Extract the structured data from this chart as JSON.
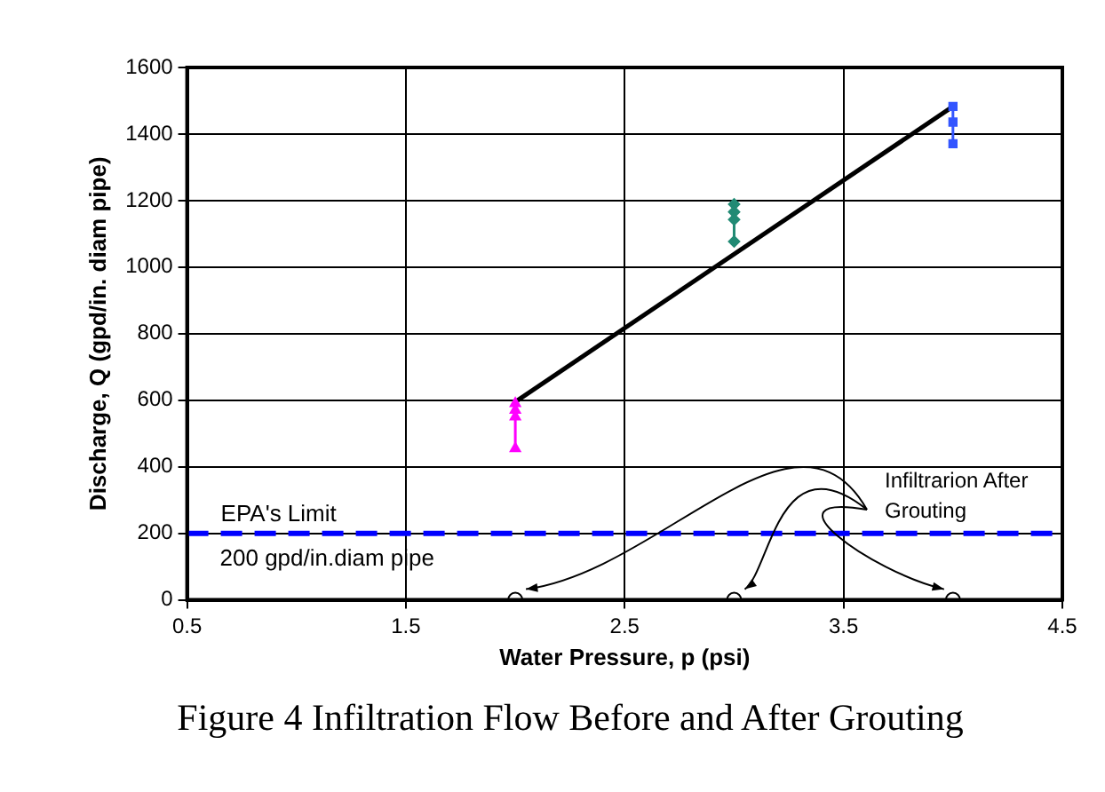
{
  "chart_data": {
    "type": "scatter",
    "title": "Figure 4 Infiltration Flow Before and After Grouting",
    "xlabel": "Water Pressure, p (psi)",
    "ylabel": "Discharge, Q (gpd/in. diam pipe)",
    "xlim": [
      0.5,
      4.5
    ],
    "xticks": [
      0.5,
      1.5,
      2.5,
      3.5,
      4.5
    ],
    "ylim": [
      0,
      1600
    ],
    "yticks": [
      0,
      200,
      400,
      600,
      800,
      1000,
      1200,
      1400,
      1600
    ],
    "grid": true,
    "legend": false,
    "series": [
      {
        "type": "line",
        "color": "#ff00ff",
        "marker": "triangle",
        "x": [
          2,
          2,
          2,
          2
        ],
        "values": [
          590,
          570,
          550,
          455
        ]
      },
      {
        "type": "line",
        "color": "#218a74",
        "marker": "diamond",
        "x": [
          3,
          3,
          3,
          3
        ],
        "values": [
          1189,
          1166,
          1143,
          1077
        ]
      },
      {
        "type": "line",
        "color": "#3355ff",
        "marker": "square",
        "x": [
          4,
          4,
          4
        ],
        "values": [
          1483,
          1436,
          1371
        ]
      },
      {
        "type": "line",
        "color": "#000000",
        "marker": "none",
        "x": [
          2,
          4
        ],
        "values": [
          595,
          1483
        ]
      },
      {
        "type": "scatter",
        "color": "#ffffff",
        "marker": "circle",
        "x": [
          2,
          3,
          4
        ],
        "values": [
          0,
          0,
          0
        ]
      }
    ],
    "ref_lines": [
      {
        "axis": "y",
        "value": 200,
        "label": "EPA's Limit",
        "color": "#0000ff",
        "line_style": "dashed"
      }
    ],
    "annotations": [
      {
        "text": "200 gpd/in.diam pipe",
        "x": 0.65,
        "y": 200
      },
      {
        "text": "Infiltrarion After Grouting",
        "x": 3,
        "y": 0
      }
    ]
  }
}
